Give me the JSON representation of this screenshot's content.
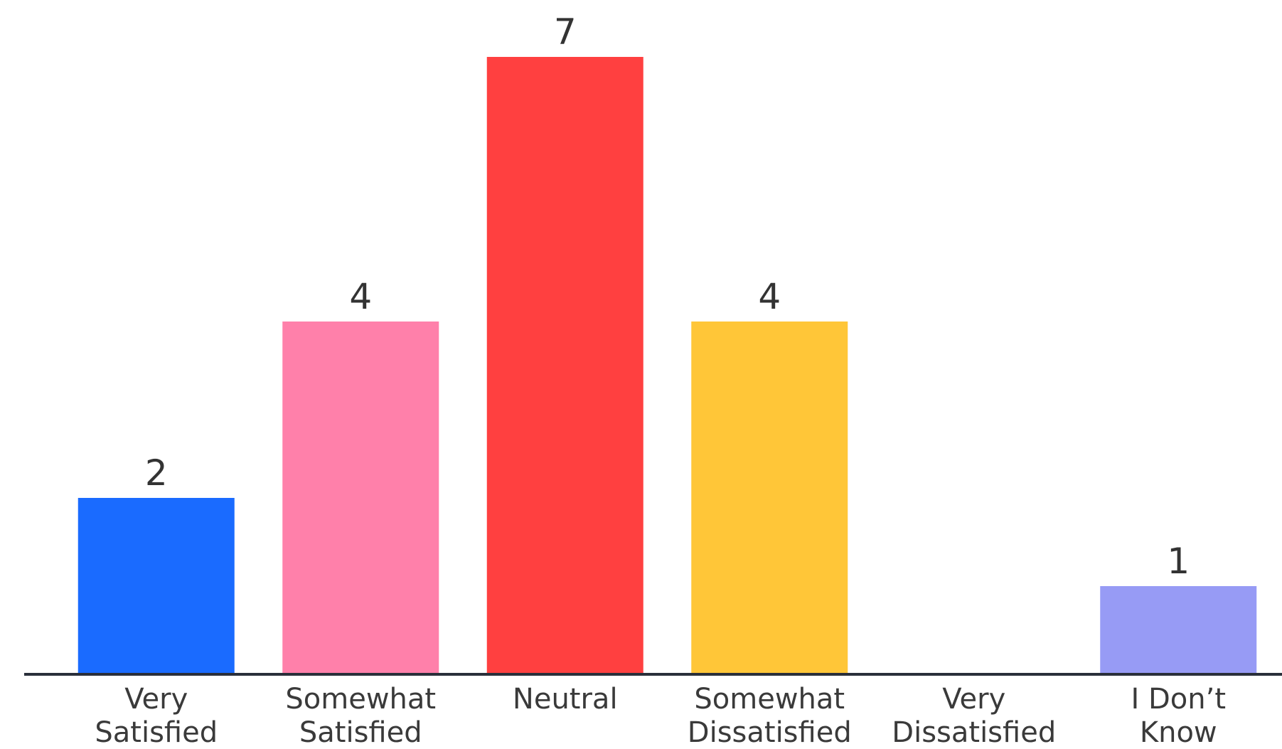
{
  "chart_data": {
    "type": "bar",
    "categories": [
      [
        "Very",
        "Satisfied"
      ],
      [
        "Somewhat",
        "Satisfied"
      ],
      [
        "Neutral"
      ],
      [
        "Somewhat",
        "Dissatisfied"
      ],
      [
        "Very",
        "Dissatisfied"
      ],
      [
        "I Don’t",
        "Know"
      ]
    ],
    "values": [
      2,
      4,
      7,
      4,
      0,
      1
    ],
    "value_labels": [
      "2",
      "4",
      "7",
      "4",
      "",
      "1"
    ],
    "colors": [
      "#1a6bff",
      "#ff80aa",
      "#ff4040",
      "#ffc638",
      "#ffffff",
      "#979bf5"
    ],
    "ylim": [
      0,
      7
    ],
    "grid": false,
    "axis_color": "#2a2f3a"
  }
}
